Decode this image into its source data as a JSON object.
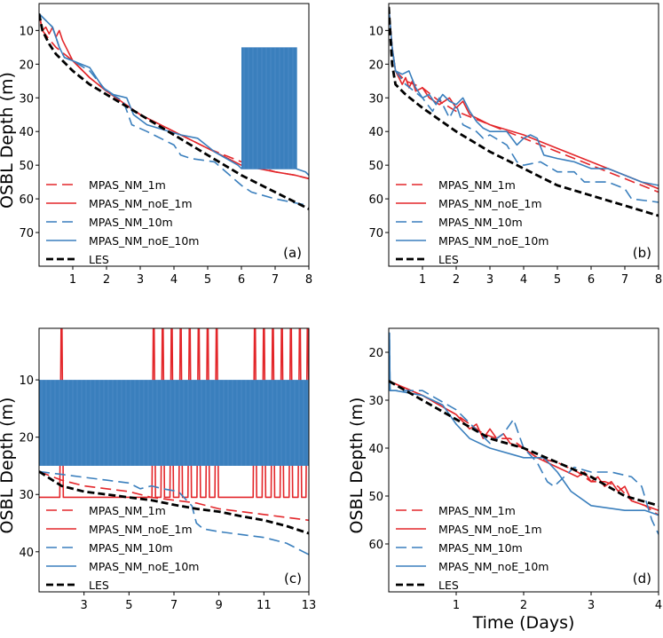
{
  "colors": {
    "les": "#000000",
    "mpas_1m": "#e3262a",
    "mpas_10m": "#3a7fbd"
  },
  "legend": [
    "MPAS_NM_1m",
    "MPAS_NM_noE_1m",
    "MPAS_NM_10m",
    "MPAS_NM_noE_10m",
    "LES"
  ],
  "chart_data": [
    {
      "type": "line",
      "panel_label": "(a)",
      "ylabel": "OSBL Depth (m)",
      "xlabel": "",
      "xlim": [
        0,
        8
      ],
      "ylim": [
        80,
        2
      ],
      "xticks": [
        1,
        2,
        3,
        4,
        5,
        6,
        7,
        8
      ],
      "yticks": [
        10,
        20,
        30,
        40,
        50,
        60,
        70
      ],
      "series": [
        {
          "name": "MPAS_NM_1m",
          "style": "dashed",
          "color": "#e3262a",
          "x": [
            0,
            0.1,
            0.25,
            0.5,
            1,
            1.5,
            2,
            3,
            4,
            5,
            6,
            7,
            7.6,
            8
          ],
          "y": [
            5,
            10,
            12,
            15,
            19,
            24,
            28,
            35,
            40,
            45,
            49,
            52,
            53,
            54
          ]
        },
        {
          "name": "MPAS_NM_noE_1m",
          "style": "solid",
          "color": "#e3262a",
          "x": [
            0,
            0.1,
            0.2,
            0.3,
            0.4,
            0.5,
            0.6,
            0.7,
            0.8,
            1,
            1.5,
            2,
            3,
            4,
            5,
            6,
            7,
            7.6,
            8
          ],
          "y": [
            5,
            10,
            9,
            11,
            9,
            12,
            10,
            13,
            15,
            19,
            24,
            28,
            35,
            40,
            45,
            50,
            52,
            53,
            54
          ]
        },
        {
          "name": "MPAS_NM_10m",
          "style": "dashed",
          "color": "#3a7fbd",
          "x": [
            0,
            0.4,
            0.6,
            0.75,
            1.0,
            1.5,
            2.0,
            2.5,
            2.75,
            3.2,
            4.0,
            4.2,
            4.5,
            5.2,
            6.0,
            6.3,
            7.0,
            8.0
          ],
          "y": [
            5,
            9,
            15,
            18,
            19,
            22,
            28,
            31,
            38,
            40,
            44,
            47,
            48,
            49,
            56,
            58,
            60,
            62
          ]
        },
        {
          "name": "MPAS_NM_noE_10m",
          "style": "solid",
          "color": "#3a7fbd",
          "x": [
            0,
            0.4,
            0.6,
            0.75,
            1.0,
            1.5,
            1.9,
            2.2,
            2.6,
            2.8,
            3.2,
            4.2,
            4.7,
            5.2,
            5.9,
            6.0,
            7.6,
            7.9,
            8.0
          ],
          "y": [
            5,
            9,
            15,
            18,
            19,
            21,
            27,
            29,
            30,
            35,
            38,
            41,
            42,
            46,
            50,
            51,
            51,
            52,
            53
          ]
        },
        {
          "name": "MPAS_NM_noE_10m oscillation",
          "style": "band",
          "color": "#3a7fbd",
          "x_range": [
            6.0,
            7.65
          ],
          "y_range": [
            15,
            51
          ]
        },
        {
          "name": "LES",
          "style": "dashed-bold",
          "color": "#000000",
          "x": [
            0,
            0.1,
            0.3,
            0.5,
            1.0,
            1.5,
            2.0,
            3.0,
            4.0,
            5.0,
            6.0,
            7.0,
            8.0
          ],
          "y": [
            5,
            10,
            14,
            17,
            22,
            26,
            29,
            35,
            41,
            47,
            53,
            58,
            63
          ]
        }
      ]
    },
    {
      "type": "line",
      "panel_label": "(b)",
      "ylabel": "",
      "xlabel": "",
      "xlim": [
        0,
        8
      ],
      "ylim": [
        80,
        2
      ],
      "xticks": [
        1,
        2,
        3,
        4,
        5,
        6,
        7,
        8
      ],
      "yticks": [
        10,
        20,
        30,
        40,
        50,
        60,
        70
      ],
      "series": [
        {
          "name": "MPAS_NM_1m",
          "style": "dashed",
          "color": "#e3262a",
          "x": [
            0,
            0.1,
            0.2,
            0.5,
            1.0,
            1.5,
            2.0,
            3.0,
            4.0,
            5.0,
            6.0,
            7.0,
            8.0
          ],
          "y": [
            3,
            15,
            22,
            25,
            27,
            31,
            34,
            38,
            42,
            46,
            50,
            54,
            58
          ]
        },
        {
          "name": "MPAS_NM_noE_1m",
          "style": "solid",
          "color": "#e3262a",
          "x": [
            0,
            0.1,
            0.2,
            0.3,
            0.4,
            0.5,
            0.6,
            0.7,
            0.8,
            1.0,
            1.2,
            1.5,
            1.8,
            2.0,
            2.2,
            2.4,
            3.0,
            4.0,
            5.0,
            6.0,
            7.0,
            8.0
          ],
          "y": [
            3,
            15,
            22,
            24,
            26,
            24,
            27,
            25,
            28,
            27,
            30,
            32,
            30,
            33,
            31,
            35,
            38,
            41,
            45,
            49,
            53,
            57
          ]
        },
        {
          "name": "MPAS_NM_10m",
          "style": "dashed",
          "color": "#3a7fbd",
          "x": [
            0,
            0.1,
            0.2,
            0.5,
            1.0,
            1.3,
            1.5,
            1.8,
            2.0,
            2.2,
            2.6,
            2.8,
            3.0,
            3.5,
            3.8,
            4.0,
            4.5,
            5.0,
            5.5,
            5.8,
            6.0,
            6.5,
            7.0,
            7.2,
            8.0
          ],
          "y": [
            3,
            15,
            22,
            26,
            30,
            34,
            30,
            36,
            32,
            38,
            40,
            42,
            41,
            44,
            49,
            50,
            49,
            52,
            52,
            55,
            55,
            55,
            57,
            60,
            61
          ]
        },
        {
          "name": "MPAS_NM_noE_10m",
          "style": "solid",
          "color": "#3a7fbd",
          "x": [
            0,
            0.1,
            0.2,
            0.4,
            0.6,
            0.8,
            1.0,
            1.2,
            1.4,
            1.6,
            1.8,
            2.0,
            2.2,
            2.4,
            2.6,
            2.8,
            3.0,
            3.5,
            3.8,
            4.0,
            4.2,
            4.4,
            4.6,
            5.0,
            5.5,
            6.0,
            6.5,
            7.0,
            7.5,
            8.0
          ],
          "y": [
            3,
            15,
            22,
            23,
            22,
            27,
            30,
            29,
            32,
            29,
            31,
            32,
            30,
            34,
            37,
            39,
            40,
            40,
            44,
            42,
            41,
            42,
            47,
            48,
            49,
            51,
            51,
            53,
            55,
            56
          ]
        },
        {
          "name": "LES",
          "style": "dashed-bold",
          "color": "#000000",
          "x": [
            0,
            0.1,
            0.2,
            0.5,
            1.0,
            2.0,
            3.0,
            4.0,
            5.0,
            6.0,
            7.0,
            8.0
          ],
          "y": [
            3,
            20,
            26,
            29,
            33,
            40,
            46,
            51,
            56,
            59,
            62,
            65
          ]
        }
      ]
    },
    {
      "type": "line",
      "panel_label": "(c)",
      "ylabel": "OSBL Depth (m)",
      "xlabel": "",
      "xlim": [
        1,
        13
      ],
      "ylim": [
        47,
        1
      ],
      "xticks": [
        3,
        5,
        7,
        9,
        11,
        13
      ],
      "yticks": [
        10,
        20,
        30,
        40
      ],
      "series": [
        {
          "name": "MPAS_NM_1m",
          "style": "dashed",
          "color": "#e3262a",
          "x": [
            1,
            2,
            3,
            4,
            5,
            6,
            7,
            8,
            9,
            10,
            11,
            12,
            13
          ],
          "y": [
            26,
            27.5,
            28.5,
            29,
            29.5,
            30.5,
            31,
            31.5,
            32.5,
            33,
            33.5,
            34,
            34.5
          ]
        },
        {
          "name": "MPAS_NM_noE_1m",
          "style": "spiky",
          "color": "#e3262a",
          "base_y": 30.5,
          "spike_top": 1,
          "spikes_x": [
            2.0,
            6.1,
            6.5,
            6.9,
            7.3,
            7.7,
            8.1,
            8.5,
            8.9,
            10.6,
            11.0,
            11.4,
            11.8,
            12.2,
            12.6,
            12.95
          ]
        },
        {
          "name": "MPAS_NM_10m",
          "style": "dashed",
          "color": "#3a7fbd",
          "x": [
            1,
            2,
            3,
            4,
            5,
            5.5,
            6,
            6.5,
            7.2,
            7.8,
            8.0,
            8.3,
            9,
            10,
            11,
            12,
            13
          ],
          "y": [
            26,
            26.5,
            27,
            27.5,
            28,
            29,
            28.5,
            29,
            29.5,
            32,
            35,
            36,
            36.5,
            37,
            37.5,
            38.5,
            40.5
          ]
        },
        {
          "name": "MPAS_NM_noE_10m oscillation",
          "style": "band",
          "color": "#3a7fbd",
          "x_range": [
            1,
            13
          ],
          "y_range": [
            10,
            25
          ]
        },
        {
          "name": "LES",
          "style": "dashed-bold",
          "color": "#000000",
          "x": [
            1,
            2,
            3,
            4,
            5,
            6,
            7,
            8,
            9,
            10,
            11,
            12,
            13
          ],
          "y": [
            26,
            28.5,
            29.5,
            30,
            30.5,
            31,
            31.8,
            32.5,
            33,
            33.8,
            34.5,
            35.5,
            36.8
          ]
        }
      ]
    },
    {
      "type": "line",
      "panel_label": "(d)",
      "ylabel": "OSBL Depth (m)",
      "xlabel": "Time (Days)",
      "xlim": [
        0,
        4
      ],
      "ylim": [
        70,
        15
      ],
      "xticks": [
        1,
        2,
        3,
        4
      ],
      "yticks": [
        20,
        30,
        40,
        50,
        60
      ],
      "series": [
        {
          "name": "MPAS_NM_1m",
          "style": "dashed",
          "color": "#e3262a",
          "x": [
            0,
            0.5,
            1.0,
            1.2,
            1.4,
            1.6,
            1.8,
            2.0,
            2.2,
            2.5,
            2.8,
            3.0,
            3.2,
            3.4,
            3.6,
            3.8,
            4.0
          ],
          "y": [
            26,
            29,
            33,
            35,
            37,
            38,
            38,
            40,
            42,
            43,
            45,
            47,
            47,
            48,
            51,
            52,
            54
          ]
        },
        {
          "name": "MPAS_NM_noE_1m",
          "style": "solid",
          "color": "#e3262a",
          "x": [
            0,
            0.5,
            1.0,
            1.2,
            1.3,
            1.4,
            1.5,
            1.6,
            1.7,
            1.8,
            2.0,
            2.2,
            2.5,
            2.8,
            2.9,
            3.0,
            3.1,
            3.2,
            3.3,
            3.4,
            3.5,
            3.6,
            3.8,
            4.0
          ],
          "y": [
            26,
            29,
            33,
            36,
            35,
            38,
            36,
            38,
            37,
            39,
            40,
            42,
            44,
            46,
            45,
            47,
            46,
            48,
            47,
            49,
            48,
            51,
            52,
            53
          ]
        },
        {
          "name": "MPAS_NM_10m",
          "style": "dashed",
          "color": "#3a7fbd",
          "x": [
            0,
            0.01,
            0.02,
            0.1,
            0.5,
            1.0,
            1.5,
            1.7,
            1.85,
            2.0,
            2.2,
            2.35,
            2.45,
            2.6,
            2.75,
            3.0,
            3.3,
            3.6,
            3.75,
            3.9,
            4.0
          ],
          "y": [
            28,
            16,
            28,
            28,
            28,
            32,
            39,
            37,
            34,
            40,
            43,
            47,
            48,
            46,
            44,
            45,
            45,
            46,
            48,
            55,
            58
          ]
        },
        {
          "name": "MPAS_NM_noE_10m",
          "style": "solid",
          "color": "#3a7fbd",
          "x": [
            0,
            0.01,
            0.02,
            0.1,
            0.5,
            0.8,
            1.0,
            1.2,
            1.5,
            2.0,
            2.3,
            2.5,
            2.7,
            3.0,
            3.5,
            3.8,
            4.0
          ],
          "y": [
            28,
            16,
            28,
            28,
            29,
            31,
            35,
            38,
            40,
            42,
            42,
            45,
            49,
            52,
            53,
            53,
            54
          ]
        },
        {
          "name": "LES",
          "style": "dashed-bold",
          "color": "#000000",
          "x": [
            0,
            0.5,
            1.0,
            1.5,
            2.0,
            2.5,
            3.0,
            3.5,
            4.0
          ],
          "y": [
            26,
            30,
            34,
            38,
            40,
            43,
            46,
            50,
            52
          ]
        }
      ]
    }
  ]
}
